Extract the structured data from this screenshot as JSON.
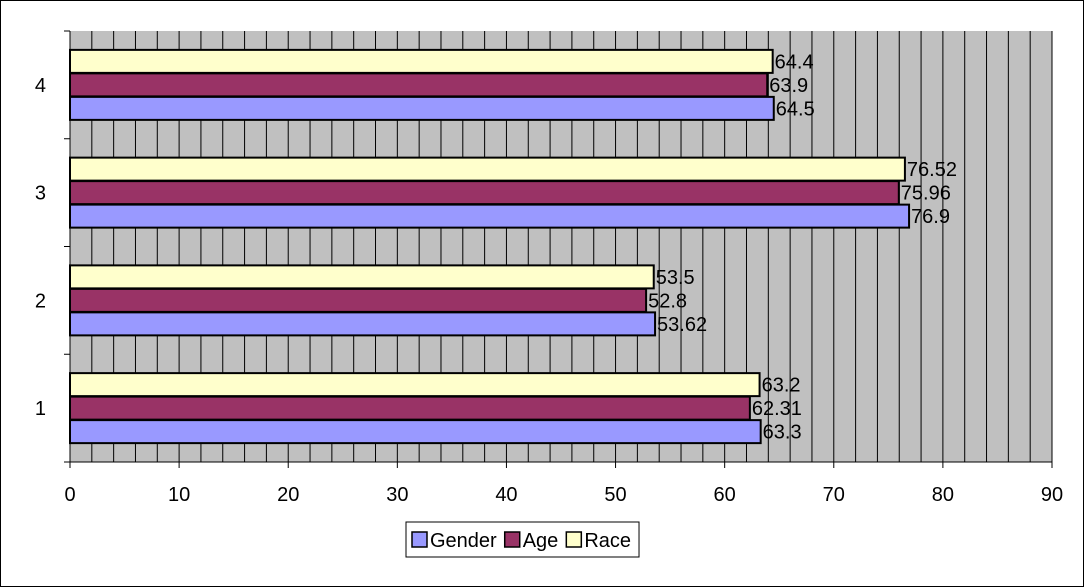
{
  "chart_data": {
    "type": "bar",
    "orientation": "horizontal",
    "categories": [
      "1",
      "2",
      "3",
      "4"
    ],
    "series": [
      {
        "name": "Gender",
        "color": "#9999FF",
        "values": [
          63.3,
          53.62,
          76.9,
          64.5
        ]
      },
      {
        "name": "Age",
        "color": "#993366",
        "values": [
          62.31,
          52.8,
          75.96,
          63.9
        ]
      },
      {
        "name": "Race",
        "color": "#FFFFCC",
        "values": [
          63.2,
          53.5,
          76.52,
          64.4
        ]
      }
    ],
    "data_labels": [
      [
        "63.3",
        "53.62",
        "76.9",
        "64.5"
      ],
      [
        "62.31",
        "52.8",
        "75.96",
        "63.9"
      ],
      [
        "63.2",
        "53.5",
        "76.52",
        "64.4"
      ]
    ],
    "xlim": [
      0,
      90
    ],
    "x_ticks": [
      "0",
      "10",
      "20",
      "30",
      "40",
      "50",
      "60",
      "70",
      "80",
      "90"
    ],
    "grid": true,
    "grid_minor_step": 2,
    "plot_background": "#C0C0C0",
    "legend_position": "bottom",
    "title": "",
    "xlabel": "",
    "ylabel": ""
  }
}
